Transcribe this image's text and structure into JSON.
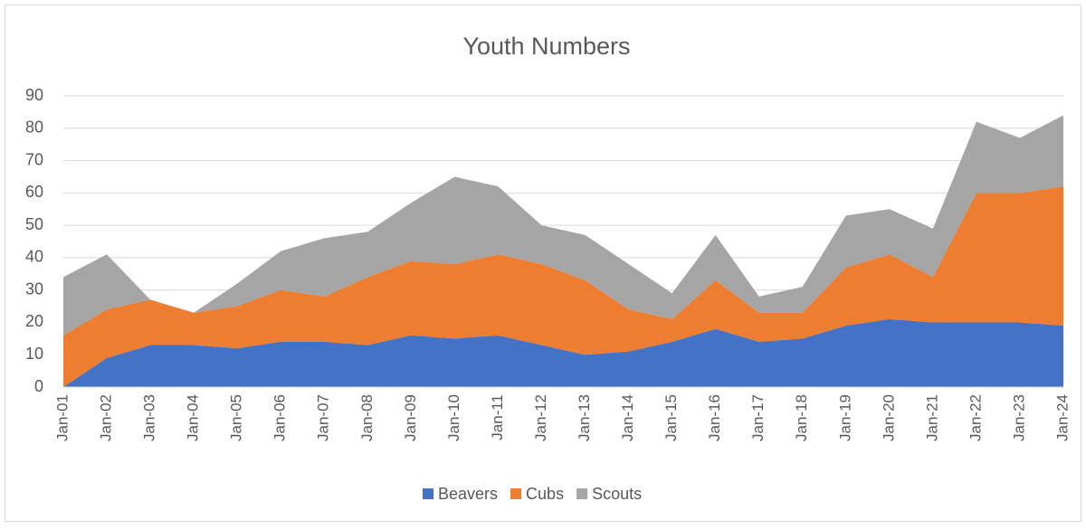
{
  "chart_data": {
    "type": "stacked_area",
    "title": "Youth Numbers",
    "categories": [
      "Jan-01",
      "Jan-02",
      "Jan-03",
      "Jan-04",
      "Jan-05",
      "Jan-06",
      "Jan-07",
      "Jan-08",
      "Jan-09",
      "Jan-10",
      "Jan-11",
      "Jan-12",
      "Jan-13",
      "Jan-14",
      "Jan-15",
      "Jan-16",
      "Jan-17",
      "Jan-18",
      "Jan-19",
      "Jan-20",
      "Jan-21",
      "Jan-22",
      "Jan-23",
      "Jan-24"
    ],
    "series": [
      {
        "name": "Beavers",
        "color": "#4472c4",
        "values": [
          0,
          9,
          13,
          13,
          12,
          14,
          14,
          13,
          16,
          15,
          16,
          13,
          10,
          11,
          14,
          18,
          14,
          15,
          19,
          21,
          20,
          20,
          20,
          19
        ]
      },
      {
        "name": "Cubs",
        "color": "#ed7d31",
        "values": [
          16,
          15,
          14,
          10,
          13,
          16,
          14,
          21,
          23,
          23,
          25,
          25,
          23,
          13,
          7,
          15,
          9,
          8,
          18,
          20,
          14,
          40,
          40,
          43
        ]
      },
      {
        "name": "Scouts",
        "color": "#a5a5a5",
        "values": [
          18,
          17,
          0,
          0,
          7,
          12,
          18,
          14,
          18,
          27,
          21,
          12,
          14,
          14,
          8,
          14,
          5,
          8,
          16,
          14,
          15,
          22,
          17,
          22
        ]
      }
    ],
    "ylim": [
      0,
      90
    ],
    "yticks": [
      0,
      10,
      20,
      30,
      40,
      50,
      60,
      70,
      80,
      90
    ],
    "grid": true,
    "legend": "bottom"
  }
}
